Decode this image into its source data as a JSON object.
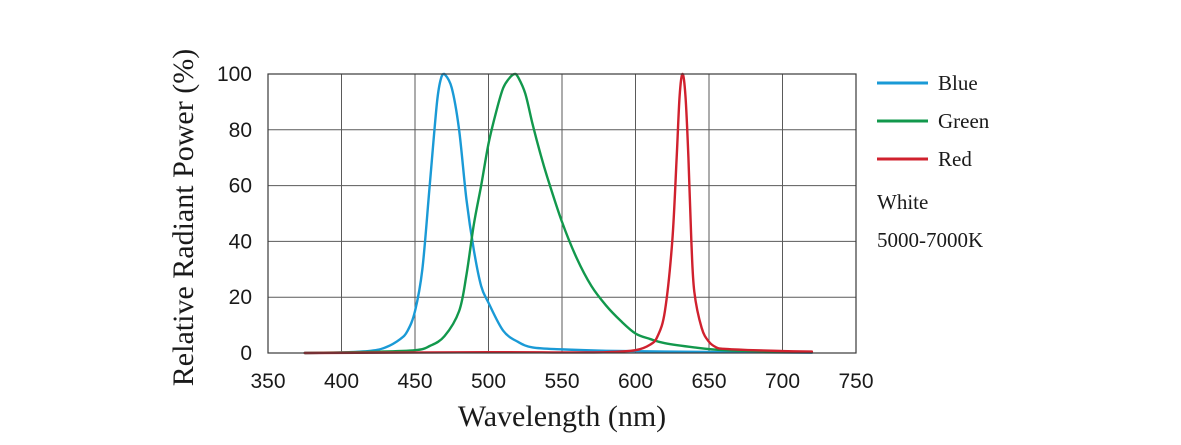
{
  "chart_data": {
    "type": "line",
    "title": "",
    "xlabel": "Wavelength (nm)",
    "ylabel": "Relative Radiant Power (%)",
    "xlim": [
      350,
      750
    ],
    "ylim": [
      0,
      100
    ],
    "xticks": [
      "350",
      "400",
      "450",
      "500",
      "550",
      "600",
      "650",
      "700",
      "750"
    ],
    "yticks": [
      "0",
      "20",
      "40",
      "60",
      "80",
      "100"
    ],
    "grid": true,
    "legend_position": "right",
    "series": [
      {
        "name": "Blue",
        "color": "#1a9ad6",
        "x": [
          375,
          400,
          420,
          430,
          440,
          445,
          450,
          455,
          460,
          465,
          468,
          470,
          475,
          480,
          485,
          490,
          495,
          500,
          510,
          520,
          530,
          550,
          580,
          620,
          680,
          720
        ],
        "y": [
          0,
          0.2,
          0.8,
          2,
          5,
          8,
          15,
          30,
          60,
          90,
          99,
          100,
          95,
          80,
          55,
          37,
          24,
          18,
          8,
          4,
          2,
          1.3,
          0.8,
          0.5,
          0.3,
          0.1
        ]
      },
      {
        "name": "Green",
        "color": "#12984c",
        "x": [
          375,
          420,
          450,
          460,
          470,
          480,
          485,
          490,
          495,
          500,
          505,
          510,
          515,
          518,
          520,
          525,
          530,
          535,
          540,
          550,
          560,
          570,
          580,
          590,
          600,
          610,
          620,
          640,
          660,
          690,
          720
        ],
        "y": [
          0,
          0.4,
          1,
          2.5,
          6,
          15,
          28,
          46,
          60,
          75,
          86,
          95,
          99,
          100,
          99,
          93,
          82,
          72,
          63,
          47,
          34,
          24,
          17,
          11.5,
          7,
          5,
          3.5,
          2,
          1,
          0.6,
          0.3
        ]
      },
      {
        "name": "Red",
        "color": "#d0212e",
        "x": [
          375,
          500,
          550,
          580,
          600,
          610,
          615,
          620,
          625,
          628,
          630,
          632,
          634,
          636,
          638,
          640,
          645,
          650,
          655,
          660,
          680,
          700,
          720
        ],
        "y": [
          0,
          0.3,
          0.2,
          0.3,
          1,
          3,
          6,
          15,
          40,
          70,
          92,
          100,
          92,
          70,
          40,
          22,
          9,
          4,
          2,
          1.5,
          1,
          0.7,
          0.5
        ]
      }
    ],
    "notes": [
      "White",
      "5000-7000K"
    ]
  }
}
